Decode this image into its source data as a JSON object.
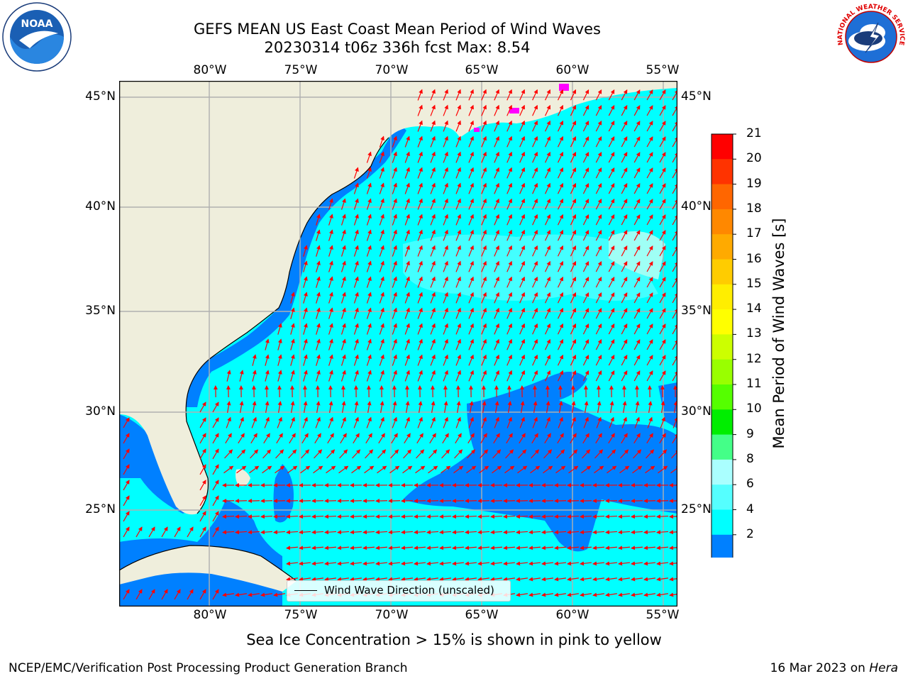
{
  "title": {
    "line1": "GEFS MEAN US East Coast Mean Period of Wind Waves",
    "line2": "20230314 t06z 336h fcst   Max: 8.54"
  },
  "logos": {
    "noaa": "NOAA",
    "nws": "NATIONAL WEATHER SERVICE"
  },
  "map": {
    "lon_range": [
      -85,
      -54.5
    ],
    "lat_range": [
      20.5,
      46.5
    ],
    "lon_ticks": [
      "80°W",
      "75°W",
      "70°W",
      "65°W",
      "60°W",
      "55°W"
    ],
    "lat_ticks": [
      "45°N",
      "40°N",
      "35°N",
      "30°N",
      "25°N"
    ],
    "colors": {
      "land": "#efeedc",
      "ocean_low": "#0080ff",
      "ocean_main": "#00ffff",
      "ocean_light": "#60ffff",
      "arrow": "#ff0000",
      "grid": "#b0b0b0",
      "sea_ice": "#ff00ff"
    },
    "arrow_icon": "red-arrow-icon"
  },
  "legend": {
    "label": "Wind Wave Direction (unscaled)"
  },
  "colorbar": {
    "label": "Mean Period of Wind Waves [s]",
    "ticks": [
      "21",
      "20",
      "19",
      "18",
      "17",
      "16",
      "15",
      "14",
      "13",
      "12",
      "11",
      "10",
      "9",
      "8",
      "6",
      "4",
      "2"
    ],
    "colors": [
      "#ff0000",
      "#ff3300",
      "#ff6600",
      "#ff8800",
      "#ffaa00",
      "#ffcc00",
      "#ffee00",
      "#ffff00",
      "#ccff00",
      "#99ff00",
      "#55ff00",
      "#00ee00",
      "#44ff88",
      "#aaffff",
      "#55ffff",
      "#00ffff",
      "#0080ff"
    ],
    "extend_color": "#0000ff"
  },
  "notes": {
    "sea_ice": "Sea Ice Concentration > 15% is shown in pink to yellow"
  },
  "footer": {
    "left": "NCEP/EMC/Verification Post Processing Product Generation Branch",
    "right_date": "16 Mar 2023 on",
    "right_host": "Hera"
  }
}
